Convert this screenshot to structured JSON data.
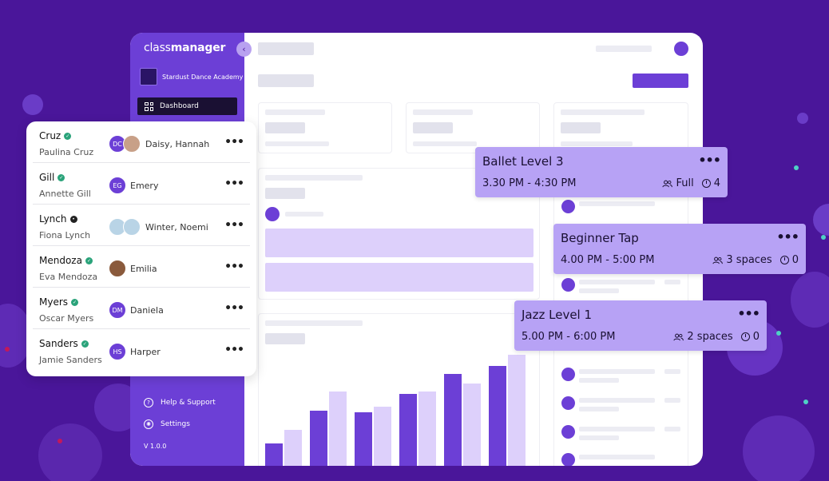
{
  "brand": {
    "light": "class",
    "bold": "manager"
  },
  "academy": {
    "name": "Stardust Dance Academy"
  },
  "nav": {
    "dashboard": "Dashboard",
    "help": "Help & Support",
    "settings": "Settings",
    "version": "V 1.0.0"
  },
  "families": [
    {
      "family": "Cruz",
      "parent": "Paulina Cruz",
      "initials": "DC",
      "kids": "Daisy, Hannah",
      "status": "verified"
    },
    {
      "family": "Gill",
      "parent": "Annette Gill",
      "initials": "EG",
      "kids": "Emery",
      "status": "verified"
    },
    {
      "family": "Lynch",
      "parent": "Fiona Lynch",
      "initials": "",
      "kids": "Winter, Noemi",
      "status": "pending"
    },
    {
      "family": "Mendoza",
      "parent": "Eva Mendoza",
      "initials": "",
      "kids": "Emilia",
      "status": "verified"
    },
    {
      "family": "Myers",
      "parent": "Oscar Myers",
      "initials": "DM",
      "kids": "Daniela",
      "status": "verified"
    },
    {
      "family": "Sanders",
      "parent": "Jamie Sanders",
      "initials": "HS",
      "kids": "Harper",
      "status": "verified"
    }
  ],
  "classes": [
    {
      "name": "Ballet Level 3",
      "time": "3.30 PM - 4:30 PM",
      "spaces": "Full",
      "waitlist": "4"
    },
    {
      "name": "Beginner Tap",
      "time": "4.00 PM - 5:00 PM",
      "spaces": "3 spaces",
      "waitlist": "0"
    },
    {
      "name": "Jazz Level 1",
      "time": "5.00 PM - 6:00 PM",
      "spaces": "2 spaces",
      "waitlist": "0"
    }
  ],
  "menu_glyph": "•••",
  "colors": {
    "brand": "#6c3fd6",
    "background": "#4a169a",
    "class_card": "#b7a2f5",
    "verified": "#2aa37a"
  }
}
